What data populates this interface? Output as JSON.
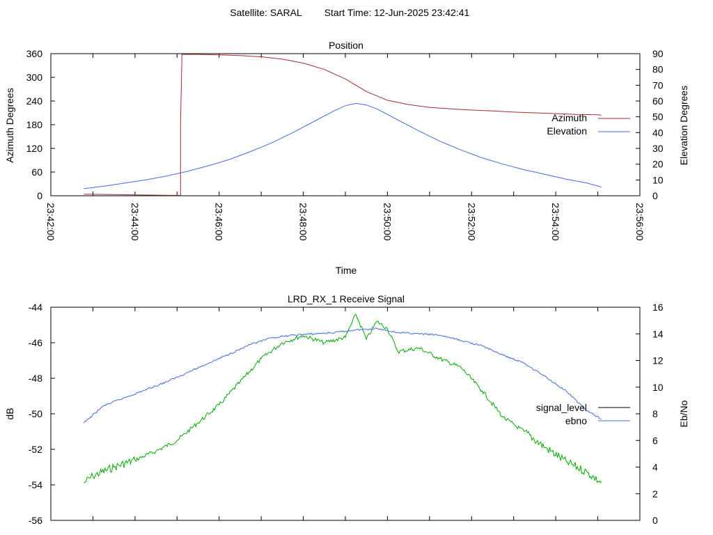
{
  "page": {
    "satellite_label": "Satellite: SARAL",
    "start_time_label": "Start Time: 12-Jun-2025 23:42:41"
  },
  "chart_data": [
    {
      "type": "line",
      "title": "Position",
      "xlabel": "Time",
      "ylabel": "Azimuth Degrees",
      "y2label": "Elevation Degrees",
      "xlim": [
        "23:42:00",
        "23:56:00"
      ],
      "xticks": [
        "23:42:00",
        "23:44:00",
        "23:46:00",
        "23:48:00",
        "23:50:00",
        "23:52:00",
        "23:54:00",
        "23:56:00"
      ],
      "ylim": [
        0,
        360
      ],
      "yticks": [
        0,
        60,
        120,
        180,
        240,
        300,
        360
      ],
      "y2lim": [
        0,
        90
      ],
      "y2ticks": [
        0,
        10,
        20,
        30,
        40,
        50,
        60,
        70,
        80,
        90
      ],
      "legend": "right",
      "series": [
        {
          "name": "Azimuth",
          "axis": "y",
          "color": "#a52a2a",
          "points": [
            [
              "23:42:47",
              4
            ],
            [
              "23:43:30",
              3
            ],
            [
              "23:44:10",
              2
            ],
            [
              "23:44:50",
              1
            ],
            [
              "23:45:05",
              1
            ],
            [
              "23:45:05",
              180
            ],
            [
              "23:45:07",
              358
            ],
            [
              "23:45:30",
              358
            ],
            [
              "23:46:00",
              357
            ],
            [
              "23:46:30",
              355
            ],
            [
              "23:47:00",
              352
            ],
            [
              "23:47:30",
              346
            ],
            [
              "23:48:00",
              336
            ],
            [
              "23:48:30",
              320
            ],
            [
              "23:49:00",
              296
            ],
            [
              "23:49:30",
              264
            ],
            [
              "23:50:00",
              242
            ],
            [
              "23:50:30",
              231
            ],
            [
              "23:51:00",
              224
            ],
            [
              "23:51:30",
              220
            ],
            [
              "23:52:00",
              217
            ],
            [
              "23:52:30",
              215
            ],
            [
              "23:53:00",
              212
            ],
            [
              "23:53:30",
              210
            ],
            [
              "23:54:00",
              208
            ],
            [
              "23:54:30",
              206
            ],
            [
              "23:55:00",
              205
            ],
            [
              "23:55:05",
              204
            ]
          ]
        },
        {
          "name": "Elevation",
          "axis": "y2",
          "color": "#4169e1",
          "points": [
            [
              "23:42:47",
              4.5
            ],
            [
              "23:43:15",
              6
            ],
            [
              "23:43:45",
              8
            ],
            [
              "23:44:15",
              10
            ],
            [
              "23:44:45",
              12.5
            ],
            [
              "23:45:15",
              15.5
            ],
            [
              "23:45:45",
              19
            ],
            [
              "23:46:15",
              23
            ],
            [
              "23:46:45",
              28
            ],
            [
              "23:47:15",
              33.5
            ],
            [
              "23:47:45",
              40
            ],
            [
              "23:48:15",
              47
            ],
            [
              "23:48:45",
              54
            ],
            [
              "23:49:00",
              57
            ],
            [
              "23:49:15",
              58.5
            ],
            [
              "23:49:30",
              57.5
            ],
            [
              "23:49:45",
              55
            ],
            [
              "23:50:15",
              48
            ],
            [
              "23:50:45",
              41
            ],
            [
              "23:51:15",
              34.5
            ],
            [
              "23:51:45",
              29
            ],
            [
              "23:52:15",
              24
            ],
            [
              "23:52:45",
              20
            ],
            [
              "23:53:15",
              16.5
            ],
            [
              "23:53:45",
              13.5
            ],
            [
              "23:54:15",
              10.5
            ],
            [
              "23:54:45",
              8
            ],
            [
              "23:55:05",
              5.5
            ]
          ]
        }
      ]
    },
    {
      "type": "line",
      "title": "LRD_RX_1 Receive Signal",
      "xlabel": "",
      "ylabel": "dB",
      "y2label": "Eb/No",
      "xlim": [
        "23:42:00",
        "23:56:00"
      ],
      "ylim": [
        -56,
        -44
      ],
      "yticks": [
        -56,
        -54,
        -52,
        -50,
        -48,
        -46,
        -44
      ],
      "y2lim": [
        0,
        16
      ],
      "y2ticks": [
        0,
        2,
        4,
        6,
        8,
        10,
        12,
        14,
        16
      ],
      "legend": "right",
      "series": [
        {
          "name": "signal_level",
          "axis": "y",
          "color": "#00aa00",
          "points": [
            [
              "23:42:47",
              -53.9
            ],
            [
              "23:43:00",
              -53.5
            ],
            [
              "23:43:30",
              -53.0
            ],
            [
              "23:44:00",
              -52.6
            ],
            [
              "23:44:30",
              -52.1
            ],
            [
              "23:45:00",
              -51.5
            ],
            [
              "23:45:30",
              -50.5
            ],
            [
              "23:46:00",
              -49.5
            ],
            [
              "23:46:30",
              -48.2
            ],
            [
              "23:47:00",
              -46.9
            ],
            [
              "23:47:30",
              -46.0
            ],
            [
              "23:48:00",
              -45.6
            ],
            [
              "23:48:30",
              -46.0
            ],
            [
              "23:49:00",
              -45.7
            ],
            [
              "23:49:15",
              -44.4
            ],
            [
              "23:49:30",
              -45.8
            ],
            [
              "23:49:45",
              -44.8
            ],
            [
              "23:50:00",
              -45.2
            ],
            [
              "23:50:15",
              -46.5
            ],
            [
              "23:50:45",
              -46.3
            ],
            [
              "23:51:15",
              -46.9
            ],
            [
              "23:51:45",
              -47.4
            ],
            [
              "23:52:15",
              -48.7
            ],
            [
              "23:52:45",
              -50.2
            ],
            [
              "23:53:15",
              -51.0
            ],
            [
              "23:53:45",
              -51.9
            ],
            [
              "23:54:15",
              -52.7
            ],
            [
              "23:54:45",
              -53.3
            ],
            [
              "23:55:05",
              -53.9
            ]
          ]
        },
        {
          "name": "ebno",
          "axis": "y2",
          "color": "#4169e1",
          "points": [
            [
              "23:42:47",
              7.3
            ],
            [
              "23:43:15",
              8.6
            ],
            [
              "23:43:45",
              9.2
            ],
            [
              "23:44:15",
              9.8
            ],
            [
              "23:44:45",
              10.4
            ],
            [
              "23:45:15",
              11.1
            ],
            [
              "23:45:45",
              11.8
            ],
            [
              "23:46:15",
              12.5
            ],
            [
              "23:46:45",
              13.2
            ],
            [
              "23:47:15",
              13.7
            ],
            [
              "23:47:45",
              13.9
            ],
            [
              "23:48:15",
              14.0
            ],
            [
              "23:48:45",
              14.1
            ],
            [
              "23:49:15",
              14.3
            ],
            [
              "23:49:45",
              14.4
            ],
            [
              "23:50:15",
              14.1
            ],
            [
              "23:50:45",
              14.0
            ],
            [
              "23:51:15",
              13.9
            ],
            [
              "23:51:45",
              13.5
            ],
            [
              "23:52:15",
              13.1
            ],
            [
              "23:52:45",
              12.4
            ],
            [
              "23:53:15",
              11.8
            ],
            [
              "23:53:45",
              10.8
            ],
            [
              "23:54:15",
              9.7
            ],
            [
              "23:54:45",
              8.2
            ],
            [
              "23:55:05",
              7.6
            ]
          ]
        }
      ]
    }
  ]
}
